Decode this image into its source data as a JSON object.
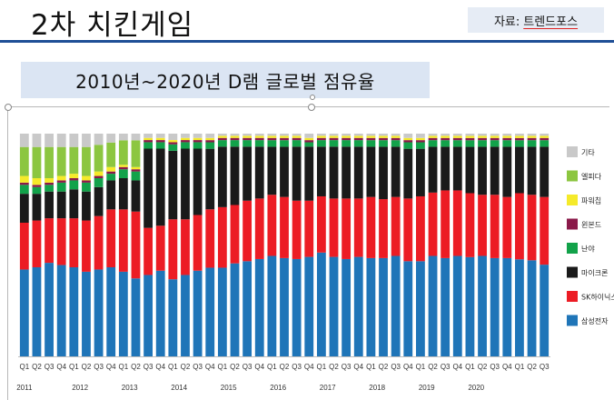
{
  "slide": {
    "title": "2차 치킨게임",
    "source_label": "자료:",
    "source_name": "트렌드포스",
    "chart_title": "2010년~2020년 D램 글로벌 점유율"
  },
  "chart_data": {
    "type": "bar",
    "stacked": true,
    "ylim": [
      0,
      100
    ],
    "unit": "%",
    "categories": [
      "Q1",
      "Q2",
      "Q3",
      "Q4",
      "Q1",
      "Q2",
      "Q3",
      "Q4",
      "Q1",
      "Q2",
      "Q3",
      "Q4",
      "Q1",
      "Q2",
      "Q3",
      "Q4",
      "Q1",
      "Q2",
      "Q3",
      "Q4",
      "Q1",
      "Q2",
      "Q3",
      "Q4",
      "Q1",
      "Q2",
      "Q3",
      "Q4",
      "Q1",
      "Q2",
      "Q3",
      "Q4",
      "Q1",
      "Q2",
      "Q3",
      "Q4",
      "Q1",
      "Q2",
      "Q3",
      "Q4",
      "Q1",
      "Q2",
      "Q3"
    ],
    "year_labels": [
      {
        "year": "2011",
        "index": 0
      },
      {
        "year": "2012",
        "index": 4.5
      },
      {
        "year": "2013",
        "index": 8.5
      },
      {
        "year": "2014",
        "index": 12.5
      },
      {
        "year": "2015",
        "index": 16.5
      },
      {
        "year": "2016",
        "index": 20.5
      },
      {
        "year": "2017",
        "index": 24.5
      },
      {
        "year": "2018",
        "index": 28.5
      },
      {
        "year": "2019",
        "index": 32.5
      },
      {
        "year": "2020",
        "index": 36.5
      }
    ],
    "series": [
      {
        "name": "삼성전자",
        "color": "#1f75b8",
        "values": [
          39,
          40,
          42,
          41,
          40,
          38,
          39,
          40,
          38,
          35,
          38,
          40,
          36,
          38,
          40,
          41,
          41,
          43,
          44,
          45,
          46,
          45,
          45,
          46,
          48,
          46,
          45,
          46,
          45,
          45,
          46,
          44,
          44,
          46,
          45,
          46,
          45,
          46,
          45,
          45,
          44,
          44,
          42
        ]
      },
      {
        "name": "SK하이닉스",
        "color": "#ec1c24",
        "values": [
          21,
          21,
          20,
          21,
          22,
          23,
          24,
          26,
          28,
          30,
          22,
          21,
          28,
          26,
          26,
          27,
          28,
          27,
          28,
          28,
          28,
          28,
          27,
          26,
          26,
          27,
          28,
          27,
          28,
          27,
          27,
          29,
          30,
          29,
          31,
          30,
          29,
          28,
          29,
          28,
          30,
          30,
          31
        ]
      },
      {
        "name": "마이크론",
        "color": "#1a1a1a",
        "values": [
          13,
          12,
          12,
          12,
          13,
          13,
          13,
          13,
          14,
          14,
          37,
          36,
          32,
          33,
          31,
          28,
          28,
          27,
          25,
          24,
          22,
          23,
          25,
          25,
          23,
          24,
          24,
          24,
          23,
          24,
          23,
          23,
          22,
          21,
          20,
          20,
          21,
          22,
          22,
          23,
          21,
          22,
          23
        ]
      },
      {
        "name": "난야",
        "color": "#12a24a",
        "values": [
          4,
          3,
          3,
          4,
          4,
          4,
          4,
          3,
          4,
          4,
          3,
          3,
          3,
          3,
          3,
          3,
          3,
          3,
          3,
          3,
          3,
          3,
          3,
          2,
          3,
          3,
          3,
          3,
          3,
          3,
          3,
          3,
          3,
          3,
          3,
          3,
          3,
          3,
          3,
          3,
          3,
          3,
          3
        ]
      },
      {
        "name": "윈본드",
        "color": "#8b1a4a",
        "values": [
          1,
          1,
          1,
          1,
          1,
          1,
          1,
          1,
          1,
          1,
          1,
          1,
          1,
          1,
          1,
          1,
          1,
          1,
          1,
          1,
          1,
          1,
          1,
          1,
          1,
          1,
          1,
          1,
          1,
          1,
          1,
          1,
          1,
          1,
          1,
          1,
          1,
          1,
          1,
          1,
          1,
          1,
          1
        ]
      },
      {
        "name": "파워칩",
        "color": "#f5ea2a",
        "values": [
          3,
          3,
          2,
          2,
          2,
          2,
          2,
          2,
          1,
          1,
          1,
          1,
          1,
          1,
          1,
          1,
          1,
          1,
          1,
          1,
          1,
          1,
          1,
          1,
          1,
          1,
          1,
          1,
          1,
          1,
          1,
          1,
          1,
          1,
          1,
          1,
          1,
          1,
          1,
          1,
          1,
          1,
          1
        ]
      },
      {
        "name": "엘피다",
        "color": "#8cc640",
        "values": [
          13,
          14,
          14,
          13,
          12,
          13,
          12,
          11,
          11,
          12,
          0,
          0,
          0,
          0,
          0,
          0,
          0,
          0,
          0,
          0,
          0,
          0,
          0,
          0,
          0,
          0,
          0,
          0,
          0,
          0,
          0,
          0,
          0,
          0,
          0,
          0,
          0,
          0,
          0,
          0,
          0,
          0,
          0
        ]
      },
      {
        "name": "기타",
        "color": "#c9c9c9",
        "values": [
          6,
          6,
          6,
          6,
          6,
          6,
          5,
          4,
          3,
          3,
          2,
          2,
          3,
          2,
          2,
          2,
          1,
          1,
          1,
          1,
          1,
          1,
          1,
          2,
          1,
          1,
          1,
          1,
          1,
          1,
          1,
          2,
          2,
          1,
          1,
          1,
          1,
          1,
          1,
          1,
          1,
          1,
          1
        ]
      }
    ]
  }
}
